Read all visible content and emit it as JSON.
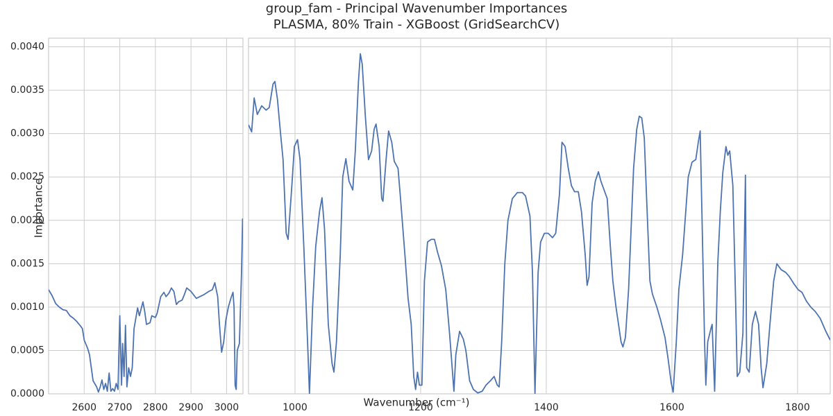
{
  "chart_data": [
    {
      "type": "line",
      "title": "group_fam - Principal Wavenumber Importances",
      "subtitle": "PLASMA, 80% Train - XGBoost (GridSearchCV)",
      "y_label": "Importance",
      "color": "#4c72b0",
      "grid": true,
      "xlim": [
        2500,
        3046
      ],
      "ylim": [
        0,
        0.0041
      ],
      "xticks": [
        2600,
        2700,
        2800,
        2900,
        3000
      ],
      "yticks": [
        {
          "value": 0,
          "label": "0.0000"
        },
        {
          "value": 0.0005,
          "label": "0.0005"
        },
        {
          "value": 0.001,
          "label": "0.0010"
        },
        {
          "value": 0.0015,
          "label": "0.0015"
        },
        {
          "value": 0.002,
          "label": "0.0020"
        },
        {
          "value": 0.0025,
          "label": "0.0025"
        },
        {
          "value": 0.003,
          "label": "0.0030"
        },
        {
          "value": 0.0035,
          "label": "0.0035"
        },
        {
          "value": 0.004,
          "label": "0.0040"
        }
      ],
      "x": [
        2500,
        2510,
        2520,
        2530,
        2540,
        2550,
        2560,
        2570,
        2580,
        2590,
        2595,
        2600,
        2610,
        2615,
        2620,
        2625,
        2635,
        2640,
        2645,
        2650,
        2655,
        2660,
        2665,
        2670,
        2675,
        2680,
        2685,
        2690,
        2695,
        2700,
        2705,
        2708,
        2712,
        2716,
        2720,
        2725,
        2730,
        2735,
        2740,
        2750,
        2755,
        2765,
        2770,
        2775,
        2785,
        2790,
        2800,
        2805,
        2815,
        2824,
        2830,
        2838,
        2845,
        2852,
        2859,
        2865,
        2875,
        2882,
        2888,
        2900,
        2915,
        2935,
        2950,
        2960,
        2967,
        2975,
        2980,
        2986,
        2992,
        2998,
        3005,
        3012,
        3018,
        3021,
        3024,
        3027,
        3030,
        3036,
        3042,
        3045
      ],
      "values": [
        0.0012,
        0.00113,
        0.00104,
        0.001,
        0.00097,
        0.00096,
        0.0009,
        0.00087,
        0.00083,
        0.00078,
        0.00075,
        0.00062,
        0.00052,
        0.00045,
        0.0003,
        0.00015,
        8e-05,
        2e-05,
        8e-05,
        0.00016,
        5e-05,
        0.00012,
        3e-05,
        0.00024,
        3e-05,
        6e-05,
        3e-05,
        0.00012,
        5e-05,
        0.0009,
        0.0001,
        0.00058,
        0.0002,
        0.00079,
        8e-05,
        0.0003,
        0.0002,
        0.0003,
        0.00075,
        0.00099,
        0.0009,
        0.00106,
        0.00095,
        0.0008,
        0.00082,
        0.0009,
        0.00088,
        0.00093,
        0.00112,
        0.00117,
        0.00112,
        0.00116,
        0.00122,
        0.00118,
        0.00103,
        0.00106,
        0.00108,
        0.00115,
        0.00122,
        0.00118,
        0.0011,
        0.00114,
        0.00118,
        0.0012,
        0.00128,
        0.00112,
        0.0008,
        0.00048,
        0.0006,
        0.00085,
        0.001,
        0.0011,
        0.00117,
        0.001,
        0.0001,
        5e-05,
        0.0005,
        0.00058,
        0.0014,
        0.00202
      ]
    },
    {
      "type": "line",
      "x_label": "Wavenumber (cm⁻¹)",
      "color": "#4c72b0",
      "grid": true,
      "xlim": [
        926,
        1852
      ],
      "ylim": [
        0,
        0.0041
      ],
      "xticks": [
        1000,
        1200,
        1400,
        1600,
        1800
      ],
      "x": [
        926,
        931,
        935,
        940,
        947,
        954,
        959,
        965,
        968,
        972,
        977,
        981,
        986,
        989,
        995,
        999,
        1004,
        1008,
        1014,
        1020,
        1023,
        1028,
        1033,
        1039,
        1043,
        1047,
        1053,
        1059,
        1062,
        1066,
        1072,
        1076,
        1081,
        1086,
        1092,
        1096,
        1101,
        1104,
        1107,
        1112,
        1117,
        1122,
        1126,
        1129,
        1134,
        1138,
        1140,
        1145,
        1149,
        1154,
        1158,
        1164,
        1168,
        1175,
        1180,
        1185,
        1189,
        1192,
        1195,
        1198,
        1202,
        1206,
        1211,
        1217,
        1222,
        1227,
        1233,
        1240,
        1246,
        1253,
        1256,
        1262,
        1268,
        1272,
        1278,
        1284,
        1291,
        1298,
        1304,
        1311,
        1317,
        1322,
        1325,
        1329,
        1334,
        1339,
        1346,
        1354,
        1362,
        1367,
        1374,
        1378,
        1382,
        1387,
        1391,
        1397,
        1403,
        1410,
        1415,
        1421,
        1425,
        1430,
        1435,
        1440,
        1445,
        1451,
        1456,
        1462,
        1465,
        1468,
        1473,
        1478,
        1483,
        1487,
        1492,
        1497,
        1502,
        1506,
        1511,
        1515,
        1519,
        1522,
        1526,
        1531,
        1535,
        1539,
        1544,
        1548,
        1552,
        1556,
        1560,
        1565,
        1569,
        1576,
        1582,
        1589,
        1594,
        1599,
        1602,
        1607,
        1611,
        1617,
        1622,
        1626,
        1632,
        1638,
        1642,
        1645,
        1648,
        1652,
        1654,
        1657,
        1662,
        1664,
        1668,
        1673,
        1677,
        1681,
        1686,
        1689,
        1692,
        1697,
        1701,
        1704,
        1708,
        1713,
        1717,
        1719,
        1723,
        1728,
        1733,
        1738,
        1742,
        1745,
        1751,
        1756,
        1762,
        1767,
        1774,
        1781,
        1787,
        1794,
        1801,
        1807,
        1814,
        1821,
        1828,
        1836,
        1845,
        1852
      ],
      "values": [
        0.0031,
        0.00302,
        0.00341,
        0.00322,
        0.00332,
        0.00327,
        0.0033,
        0.00357,
        0.0036,
        0.0034,
        0.003,
        0.0027,
        0.00185,
        0.00178,
        0.0024,
        0.00285,
        0.00293,
        0.0027,
        0.0017,
        0.0006,
        0.0,
        0.001,
        0.0017,
        0.0021,
        0.00226,
        0.0019,
        0.0008,
        0.00035,
        0.00025,
        0.0006,
        0.0016,
        0.0025,
        0.00271,
        0.00245,
        0.00235,
        0.0028,
        0.0036,
        0.00392,
        0.0038,
        0.0032,
        0.0027,
        0.0028,
        0.00305,
        0.00311,
        0.00285,
        0.00225,
        0.00222,
        0.0027,
        0.00303,
        0.0029,
        0.00268,
        0.0026,
        0.00225,
        0.0016,
        0.0011,
        0.0008,
        0.0002,
        5e-05,
        0.00025,
        0.0001,
        0.0001,
        0.0013,
        0.00175,
        0.00178,
        0.00178,
        0.00163,
        0.00148,
        0.0012,
        0.0007,
        3e-05,
        0.00045,
        0.00072,
        0.00063,
        0.0005,
        0.00015,
        5e-05,
        1e-05,
        3e-05,
        0.0001,
        0.00015,
        0.0002,
        0.0001,
        8e-05,
        0.0006,
        0.0015,
        0.002,
        0.00225,
        0.00232,
        0.00232,
        0.00228,
        0.00205,
        0.0014,
        0.0,
        0.0014,
        0.00175,
        0.00185,
        0.00185,
        0.0018,
        0.00185,
        0.0023,
        0.0029,
        0.00285,
        0.0026,
        0.0024,
        0.00233,
        0.00233,
        0.0021,
        0.0016,
        0.00125,
        0.00135,
        0.0022,
        0.00245,
        0.00256,
        0.00245,
        0.00235,
        0.00225,
        0.0017,
        0.0013,
        0.001,
        0.0008,
        0.0006,
        0.00054,
        0.00065,
        0.0012,
        0.0019,
        0.0026,
        0.00305,
        0.0032,
        0.00318,
        0.00295,
        0.0022,
        0.0013,
        0.00115,
        0.001,
        0.00085,
        0.00065,
        0.0004,
        0.00012,
        2e-05,
        0.0006,
        0.0012,
        0.0016,
        0.0021,
        0.0025,
        0.00267,
        0.0027,
        0.0029,
        0.00303,
        0.002,
        0.0006,
        0.0001,
        0.0006,
        0.00075,
        0.0008,
        3e-05,
        0.0015,
        0.0021,
        0.00255,
        0.00285,
        0.00275,
        0.0028,
        0.0024,
        0.0012,
        0.0002,
        0.00025,
        0.0007,
        0.00252,
        0.0003,
        0.00025,
        0.0008,
        0.00095,
        0.0008,
        0.0003,
        7e-05,
        0.00035,
        0.0008,
        0.0013,
        0.0015,
        0.00143,
        0.0014,
        0.00135,
        0.00127,
        0.0012,
        0.00117,
        0.00107,
        0.001,
        0.00095,
        0.00087,
        0.00072,
        0.00062
      ]
    }
  ]
}
